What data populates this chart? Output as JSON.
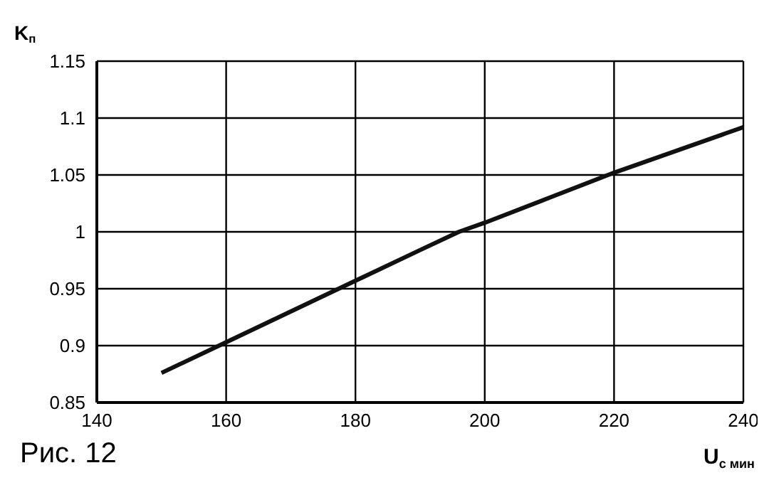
{
  "chart_data": {
    "type": "line",
    "xlabel": "U$_{с мин}$",
    "ylabel": "K$_{п}$",
    "annotations": [
      "Рис. 12"
    ],
    "x": [
      150,
      160,
      170,
      180,
      190,
      196,
      200,
      210,
      220,
      230,
      240
    ],
    "series": [
      {
        "color": "#111111",
        "values": [
          0.876,
          0.903,
          0.93,
          0.957,
          0.984,
          1.0,
          1.008,
          1.03,
          1.052,
          1.072,
          1.092
        ]
      }
    ],
    "xlim": [
      140,
      240
    ],
    "xticks": [
      140,
      160,
      180,
      200,
      220,
      240
    ],
    "ylim": [
      0.85,
      1.15
    ],
    "yticks": [
      0.85,
      0.9,
      0.95,
      1,
      1.05,
      1.1,
      1.15
    ],
    "grid": true,
    "marker": "none",
    "line_style": "solid"
  }
}
